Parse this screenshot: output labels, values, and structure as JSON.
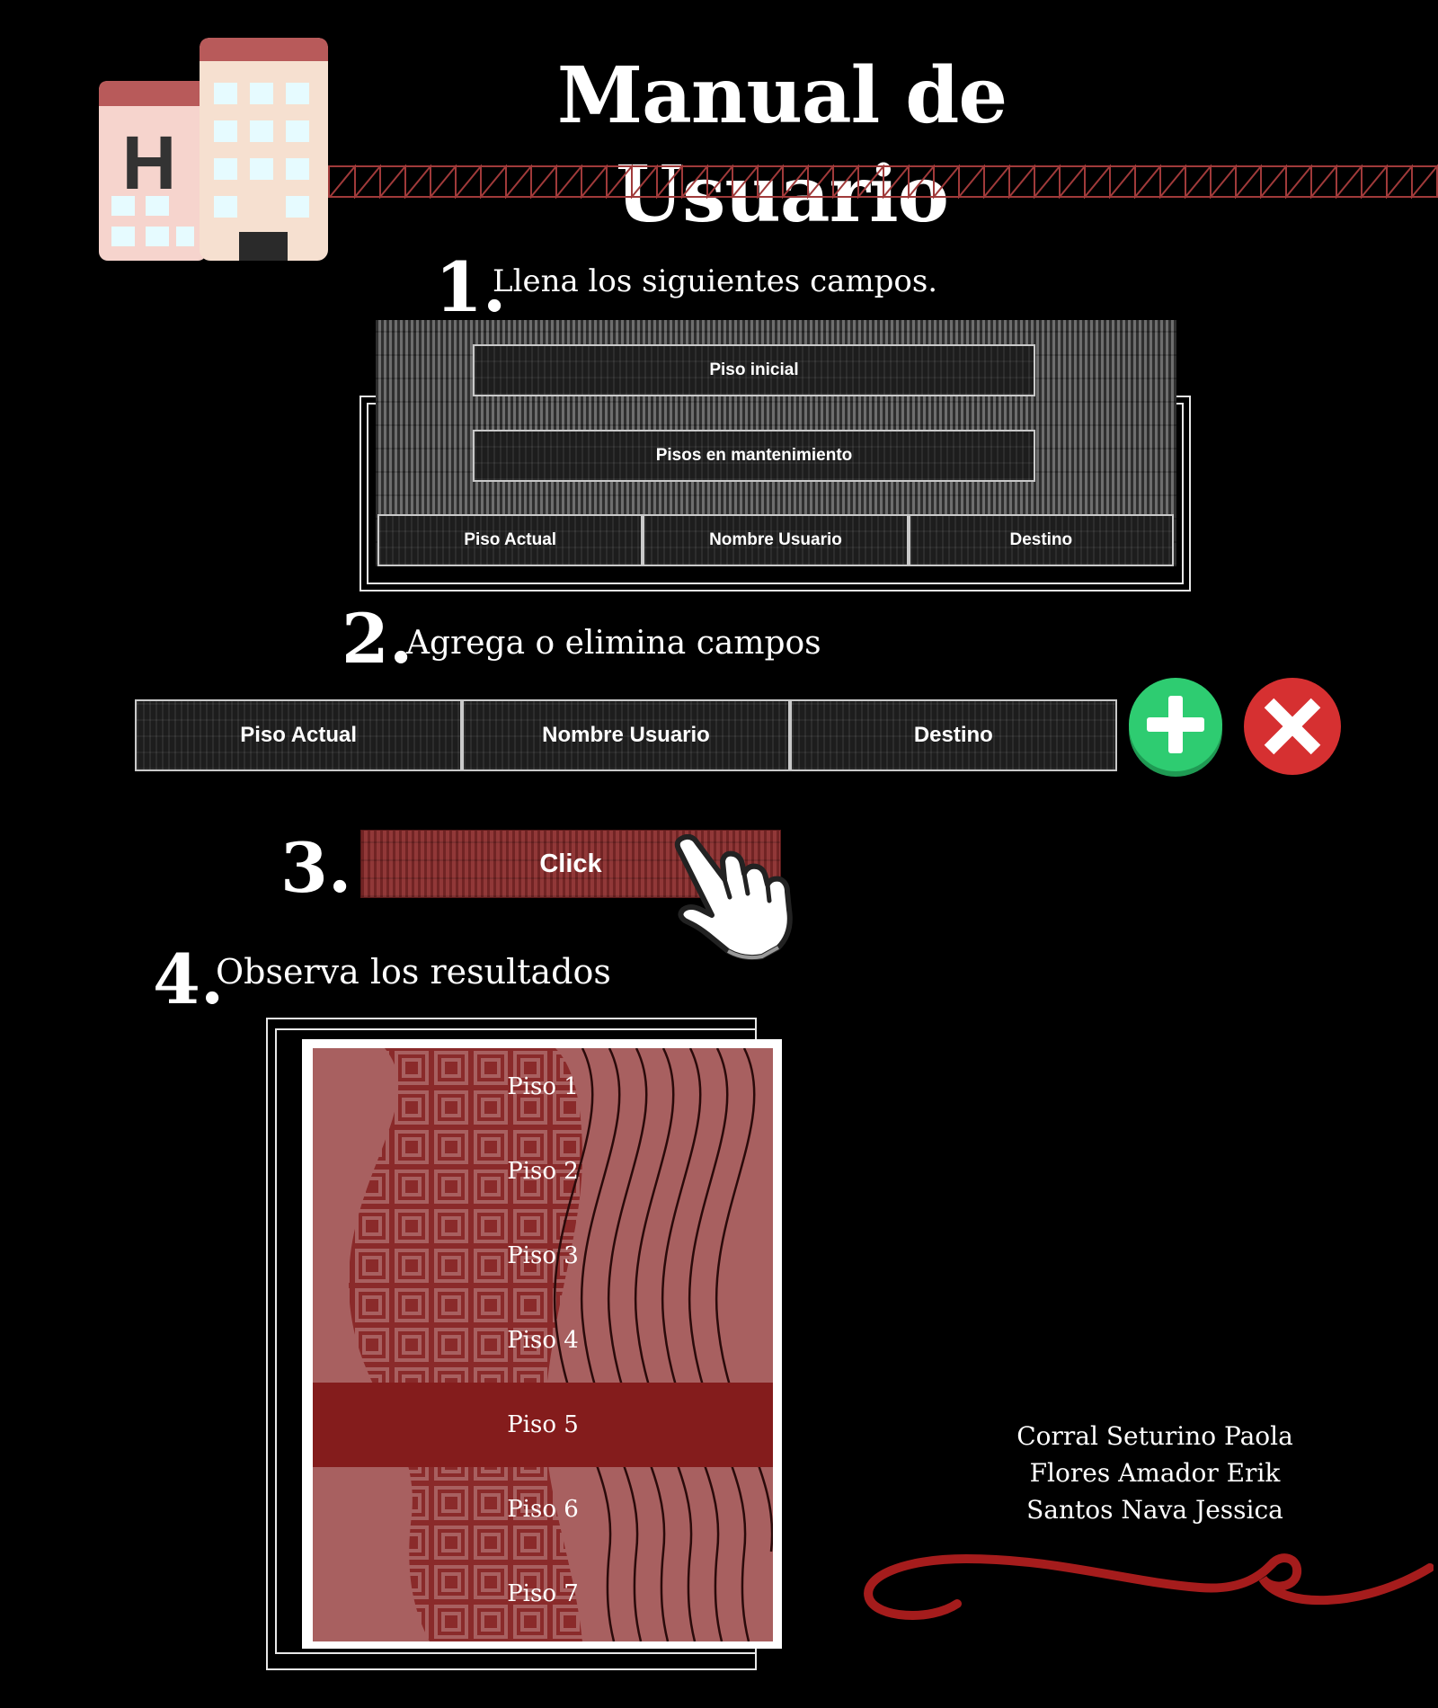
{
  "title": "Manual de Usuario",
  "steps": [
    {
      "number": "1.",
      "text": "Llena los siguientes campos."
    },
    {
      "number": "2.",
      "text": "Agrega o elimina campos"
    },
    {
      "number": "3.",
      "text": ""
    },
    {
      "number": "4.",
      "text": "Observa los resultados"
    }
  ],
  "step1_fields": {
    "piso_inicial": "Piso inicial",
    "pisos_mantenimiento": "Pisos en mantenimiento",
    "row": [
      "Piso Actual",
      "Nombre Usuario",
      "Destino"
    ]
  },
  "step2_fields": [
    "Piso Actual",
    "Nombre Usuario",
    "Destino"
  ],
  "step3_button": "Click",
  "results": {
    "items": [
      "Piso 1",
      "Piso 2",
      "Piso 3",
      "Piso 4",
      "Piso 5",
      "Piso 6",
      "Piso 7"
    ],
    "selected": "Piso 5"
  },
  "credits": [
    "Corral Seturino Paola",
    "Flores Amador Erik",
    "Santos Nava Jessica"
  ],
  "icons": {
    "hotel": "hotel-icon",
    "add": "plus-circle-icon",
    "remove": "x-circle-icon",
    "cursor": "hand-pointer-icon"
  },
  "colors": {
    "background": "#000000",
    "accent_red": "#a52a2a",
    "add_green": "#2ecc71",
    "remove_red": "#d63031",
    "result_bg": "#a86060",
    "result_selected": "#841c1c"
  }
}
